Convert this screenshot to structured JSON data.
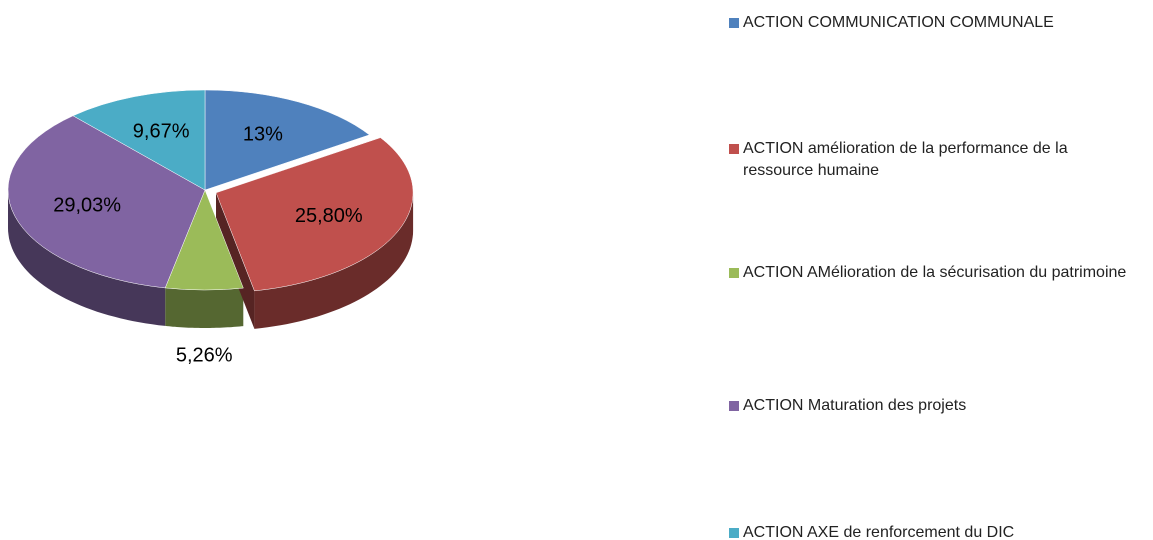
{
  "chart_data": {
    "type": "pie",
    "categories": [
      "ACTION COMMUNICATION COMMUNALE",
      "ACTION amélioration de la performance de la ressource humaine",
      "ACTION AMélioration de la sécurisation du patrimoine",
      "ACTION Maturation des projets",
      "ACTION AXE de renforcement du DIC"
    ],
    "values": [
      13,
      25.8,
      5.26,
      29.03,
      9.67
    ],
    "value_labels": [
      "13%",
      "25,80%",
      "5,26%",
      "29,03%",
      "9,67%"
    ],
    "colors": [
      "#4f81bd",
      "#c0504d",
      "#9bbb59",
      "#8064a2",
      "#4bacc6"
    ],
    "exploded": [
      false,
      true,
      false,
      false,
      false
    ],
    "legend": "right"
  }
}
